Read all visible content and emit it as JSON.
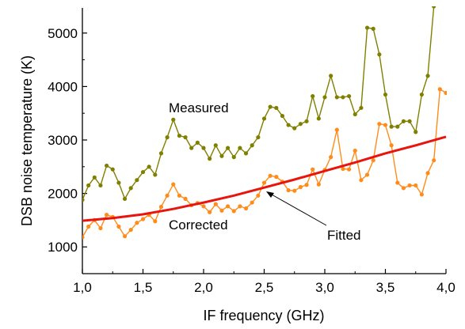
{
  "chart_data": {
    "type": "line",
    "xlabel": "IF frequency (GHz)",
    "ylabel": "DSB noise temperature (K)",
    "xlim": [
      1.0,
      4.0
    ],
    "ylim": [
      500,
      5500
    ],
    "x_ticks": [
      "1,0",
      "1,5",
      "2,0",
      "2,5",
      "3,0",
      "3,5",
      "4,0"
    ],
    "x_tick_values": [
      1.0,
      1.5,
      2.0,
      2.5,
      3.0,
      3.5,
      4.0
    ],
    "y_ticks": [
      "1000",
      "2000",
      "3000",
      "4000",
      "5000"
    ],
    "y_tick_values": [
      1000,
      2000,
      3000,
      4000,
      5000
    ],
    "grid": false,
    "annotations": {
      "measured": "Measured",
      "corrected": "Corrected",
      "fitted": "Fitted"
    },
    "series": [
      {
        "name": "Measured",
        "color": "#808000",
        "marker": "circle",
        "x": [
          1.0,
          1.05,
          1.1,
          1.15,
          1.2,
          1.25,
          1.3,
          1.35,
          1.4,
          1.45,
          1.5,
          1.55,
          1.6,
          1.65,
          1.7,
          1.75,
          1.8,
          1.85,
          1.9,
          1.95,
          2.0,
          2.05,
          2.1,
          2.15,
          2.2,
          2.25,
          2.3,
          2.35,
          2.4,
          2.45,
          2.5,
          2.55,
          2.6,
          2.65,
          2.7,
          2.75,
          2.8,
          2.85,
          2.9,
          2.95,
          3.0,
          3.05,
          3.1,
          3.15,
          3.2,
          3.25,
          3.3,
          3.35,
          3.4,
          3.45,
          3.5,
          3.55,
          3.6,
          3.65,
          3.7,
          3.75,
          3.8,
          3.85,
          3.9,
          3.95,
          4.0
        ],
        "y": [
          1880,
          2150,
          2300,
          2150,
          2520,
          2450,
          2200,
          1900,
          2100,
          2250,
          2400,
          2500,
          2350,
          2750,
          3050,
          3380,
          3080,
          3050,
          2850,
          2950,
          2850,
          2650,
          2900,
          2700,
          2850,
          2680,
          2850,
          2750,
          2900,
          3050,
          3400,
          3620,
          3600,
          3450,
          3280,
          3220,
          3300,
          3350,
          3820,
          3400,
          3800,
          4200,
          3800,
          3800,
          3820,
          3480,
          3600,
          5100,
          5080,
          4600,
          3850,
          3250,
          3250,
          3350,
          3350,
          3150,
          3850,
          4200,
          5500,
          5600,
          5600
        ]
      },
      {
        "name": "Corrected",
        "color": "#ff8c1a",
        "marker": "circle",
        "x": [
          1.0,
          1.05,
          1.1,
          1.15,
          1.2,
          1.25,
          1.3,
          1.35,
          1.4,
          1.45,
          1.5,
          1.55,
          1.6,
          1.65,
          1.7,
          1.75,
          1.8,
          1.85,
          1.9,
          1.95,
          2.0,
          2.05,
          2.1,
          2.15,
          2.2,
          2.25,
          2.3,
          2.35,
          2.4,
          2.45,
          2.5,
          2.55,
          2.6,
          2.65,
          2.7,
          2.75,
          2.8,
          2.85,
          2.9,
          2.95,
          3.0,
          3.05,
          3.1,
          3.15,
          3.2,
          3.25,
          3.3,
          3.35,
          3.4,
          3.45,
          3.5,
          3.55,
          3.6,
          3.65,
          3.7,
          3.75,
          3.8,
          3.85,
          3.9,
          3.95,
          4.0
        ],
        "y": [
          1180,
          1380,
          1500,
          1350,
          1600,
          1560,
          1380,
          1200,
          1320,
          1450,
          1520,
          1600,
          1480,
          1750,
          1960,
          2170,
          1960,
          1900,
          1780,
          1820,
          1760,
          1650,
          1800,
          1680,
          1760,
          1670,
          1760,
          1720,
          1830,
          1960,
          2200,
          2330,
          2310,
          2220,
          2060,
          2050,
          2120,
          2160,
          2450,
          2170,
          2440,
          2680,
          3190,
          2460,
          2450,
          2800,
          2250,
          2350,
          2620,
          3300,
          3280,
          2900,
          2200,
          2100,
          2150,
          2150,
          1980,
          2380,
          2620,
          3950,
          3880
        ]
      },
      {
        "name": "Fitted",
        "color": "#e8140e",
        "marker": "none",
        "x": [
          1.0,
          1.25,
          1.5,
          1.75,
          2.0,
          2.25,
          2.5,
          2.75,
          3.0,
          3.25,
          3.5,
          3.75,
          4.0
        ],
        "y": [
          1490,
          1540,
          1610,
          1710,
          1830,
          1960,
          2110,
          2260,
          2420,
          2580,
          2750,
          2900,
          3060
        ]
      }
    ]
  }
}
